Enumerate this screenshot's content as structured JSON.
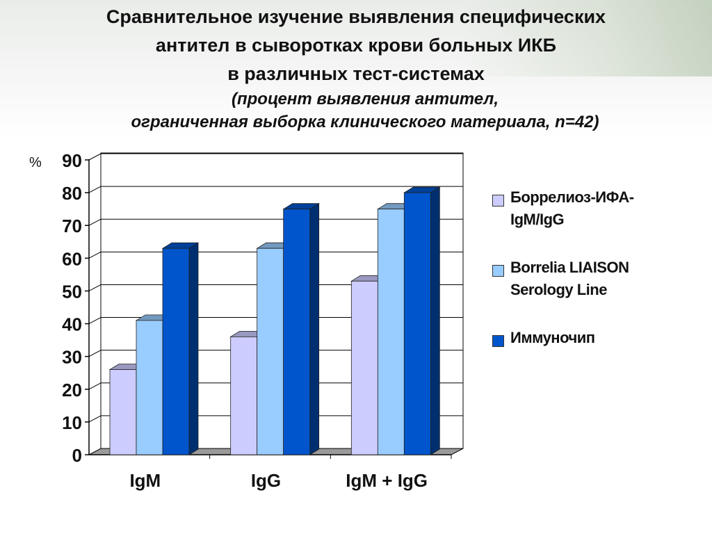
{
  "title_lines": [
    "Сравнительное изучение выявления специфических",
    "антител в сыворотках крови больных ИКБ",
    "в различных тест-системах"
  ],
  "subtitle_lines": [
    "(процент выявления антител,",
    "ограниченная выборка клинического материала, n=42)"
  ],
  "chart_data": {
    "type": "bar",
    "ylabel": "%",
    "ylim": [
      0,
      90
    ],
    "yticks": [
      0,
      10,
      20,
      30,
      40,
      50,
      60,
      70,
      80,
      90
    ],
    "categories": [
      "IgM",
      "IgG",
      "IgM + IgG"
    ],
    "series": [
      {
        "name": "Боррелиоз-ИФА-IgM/IgG",
        "values": [
          26,
          36,
          53
        ],
        "color": "#ccccff"
      },
      {
        "name": "Borrelia LIAISON Serology Line",
        "values": [
          41,
          63,
          75
        ],
        "color": "#99ccff"
      },
      {
        "name": "Иммуночип",
        "values": [
          63,
          75,
          80
        ],
        "color": "#0055cc"
      }
    ],
    "grid": true,
    "legend_position": "right"
  },
  "legend": {
    "items": [
      {
        "lines": [
          "Боррелиоз-ИФА-",
          "IgM/IgG"
        ],
        "color": "#ccccff"
      },
      {
        "lines": [
          "Borrelia LIAISON",
          "Serology Line"
        ],
        "color": "#99ccff"
      },
      {
        "lines": [
          "Иммуночип"
        ],
        "color": "#0055cc"
      }
    ]
  }
}
